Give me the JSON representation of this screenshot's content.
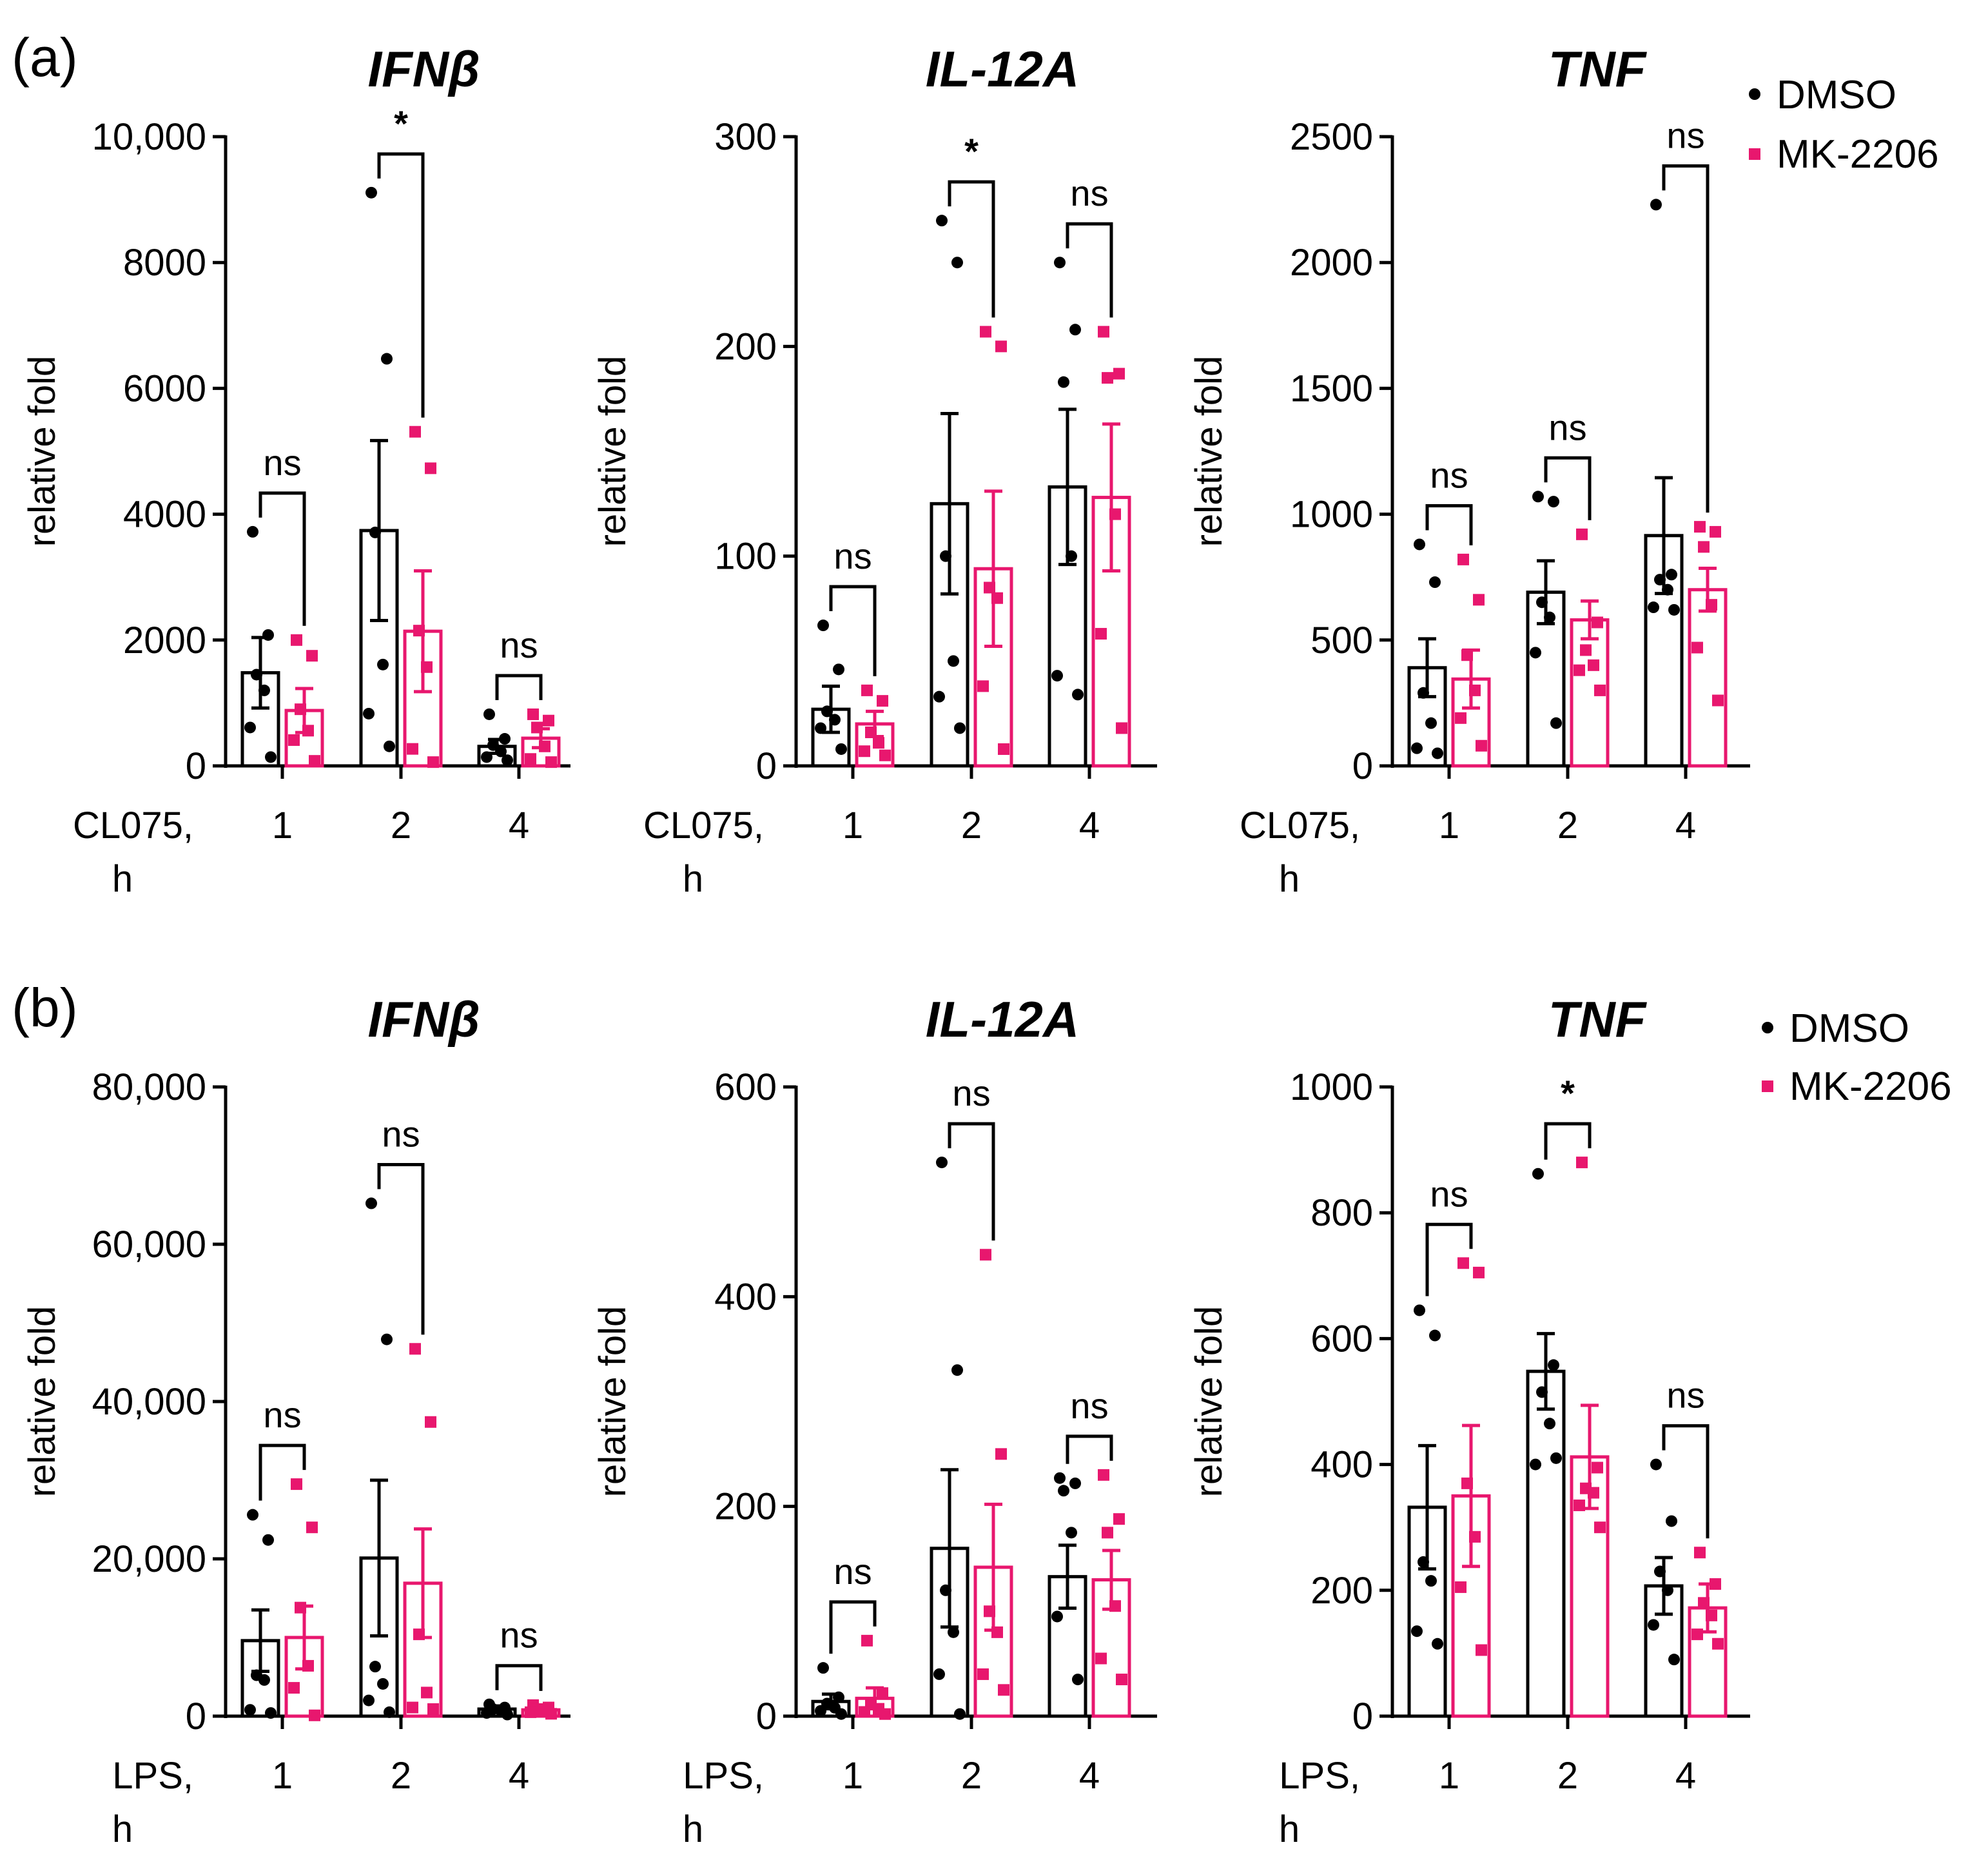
{
  "colors": {
    "dmso": "#000000",
    "mk": "#e8176e"
  },
  "legend": [
    {
      "label": "DMSO",
      "series": "dmso"
    },
    {
      "label": "MK-2206",
      "series": "mk"
    }
  ],
  "panels": [
    {
      "id": "a",
      "label": "(a)",
      "stimulus": "CL075,"
    },
    {
      "id": "b",
      "label": "(b)",
      "stimulus": "LPS,"
    }
  ],
  "chart_data": [
    {
      "panel": "a",
      "type": "bar",
      "title": "IFNβ",
      "ylabel": "relative fold",
      "xlabel_line1": "CL075,",
      "xlabel_line2": "h",
      "categories": [
        "1",
        "2",
        "4"
      ],
      "ylim": [
        0,
        10000
      ],
      "yticks": [
        0,
        2000,
        4000,
        6000,
        8000,
        10000
      ],
      "ytick_labels": [
        "0",
        "2000",
        "4000",
        "6000",
        "8000",
        "10,000"
      ],
      "series": [
        {
          "name": "DMSO",
          "means": [
            1480,
            3740,
            310
          ],
          "sem": [
            560,
            1430,
            110
          ],
          "points": [
            [
              3720,
              2080,
              1450,
              1200,
              610,
              140
            ],
            [
              9110,
              6470,
              3710,
              1610,
              830,
              310
            ],
            [
              820,
              430,
              330,
              230,
              140,
              90
            ]
          ]
        },
        {
          "name": "MK-2206",
          "means": [
            880,
            2140,
            440
          ],
          "sem": [
            350,
            960,
            150
          ],
          "points": [
            [
              2000,
              1750,
              900,
              560,
              410,
              80
            ],
            [
              5310,
              4730,
              2150,
              1570,
              270,
              60
            ],
            [
              820,
              720,
              610,
              310,
              110,
              60
            ]
          ]
        }
      ],
      "significance": [
        "ns",
        "*",
        "ns"
      ]
    },
    {
      "panel": "a",
      "type": "bar",
      "title": "IL-12A",
      "ylabel": "relative fold",
      "xlabel_line1": "CL075,",
      "xlabel_line2": "h",
      "categories": [
        "1",
        "2",
        "4"
      ],
      "ylim": [
        0,
        300
      ],
      "yticks": [
        0,
        100,
        200,
        300
      ],
      "ytick_labels": [
        "0",
        "100",
        "200",
        "300"
      ],
      "series": [
        {
          "name": "DMSO",
          "means": [
            27,
            125,
            133
          ],
          "sem": [
            11,
            43,
            37
          ],
          "points": [
            [
              67,
              46,
              26,
              22,
              18,
              8
            ],
            [
              260,
              240,
              100,
              50,
              33,
              18
            ],
            [
              240,
              208,
              183,
              100,
              43,
              34
            ]
          ]
        },
        {
          "name": "MK-2206",
          "means": [
            20,
            94,
            128
          ],
          "sem": [
            6,
            37,
            35
          ],
          "points": [
            [
              36,
              31,
              16,
              11,
              7,
              5
            ],
            [
              207,
              200,
              85,
              80,
              38,
              8
            ],
            [
              207,
              187,
              185,
              120,
              63,
              18
            ]
          ]
        }
      ],
      "significance": [
        "ns",
        "*",
        "ns"
      ]
    },
    {
      "panel": "a",
      "type": "bar",
      "title": "TNF",
      "ylabel": "relative fold",
      "xlabel_line1": "CL075,",
      "xlabel_line2": "h",
      "categories": [
        "1",
        "2",
        "4"
      ],
      "ylim": [
        0,
        2500
      ],
      "yticks": [
        0,
        500,
        1000,
        1500,
        2000,
        2500
      ],
      "ytick_labels": [
        "0",
        "500",
        "1000",
        "1500",
        "2000",
        "2500"
      ],
      "series": [
        {
          "name": "DMSO",
          "means": [
            390,
            690,
            915
          ],
          "sem": [
            115,
            125,
            230
          ],
          "points": [
            [
              880,
              730,
              290,
              170,
              70,
              50
            ],
            [
              1070,
              1050,
              650,
              590,
              450,
              170
            ],
            [
              2230,
              760,
              740,
              700,
              630,
              620
            ]
          ]
        },
        {
          "name": "MK-2206",
          "means": [
            345,
            580,
            700
          ],
          "sem": [
            115,
            75,
            85
          ],
          "points": [
            [
              820,
              660,
              440,
              300,
              190,
              80
            ],
            [
              920,
              570,
              460,
              400,
              380,
              300
            ],
            [
              950,
              930,
              870,
              640,
              470,
              260
            ]
          ]
        }
      ],
      "significance": [
        "ns",
        "ns",
        "ns"
      ]
    },
    {
      "panel": "b",
      "type": "bar",
      "title": "IFNβ",
      "ylabel": "relative fold",
      "xlabel_line1": "LPS,",
      "xlabel_line2": "h",
      "categories": [
        "1",
        "2",
        "4"
      ],
      "ylim": [
        0,
        80000
      ],
      "yticks": [
        0,
        20000,
        40000,
        60000,
        80000
      ],
      "ytick_labels": [
        "0",
        "20,000",
        "40,000",
        "60,000",
        "80,000"
      ],
      "series": [
        {
          "name": "DMSO",
          "means": [
            9600,
            20100,
            900
          ],
          "sem": [
            3900,
            9900,
            400
          ],
          "points": [
            [
              25600,
              22400,
              5200,
              4600,
              800,
              400
            ],
            [
              65200,
              47900,
              6300,
              4100,
              2000,
              500
            ],
            [
              1500,
              1100,
              900,
              700,
              400,
              200
            ]
          ]
        },
        {
          "name": "MK-2206",
          "means": [
            10000,
            16900,
            800
          ],
          "sem": [
            4000,
            6900,
            300
          ],
          "points": [
            [
              29500,
              24000,
              13800,
              6400,
              3600,
              100
            ],
            [
              46700,
              37400,
              10400,
              3000,
              1100,
              900
            ],
            [
              1400,
              1100,
              900,
              700,
              500,
              300
            ]
          ]
        }
      ],
      "significance": [
        "ns",
        "ns",
        "ns"
      ]
    },
    {
      "panel": "b",
      "type": "bar",
      "title": "IL-12A",
      "ylabel": "relative fold",
      "xlabel_line1": "LPS,",
      "xlabel_line2": "h",
      "categories": [
        "1",
        "2",
        "4"
      ],
      "ylim": [
        0,
        600
      ],
      "yticks": [
        0,
        200,
        400,
        600
      ],
      "ytick_labels": [
        "0",
        "200",
        "400",
        "600"
      ],
      "series": [
        {
          "name": "DMSO",
          "means": [
            14,
            160,
            133
          ],
          "sem": [
            7,
            75,
            30
          ],
          "points": [
            [
              46,
              18,
              12,
              8,
              5,
              2
            ],
            [
              528,
              330,
              120,
              80,
              40,
              2
            ],
            [
              227,
              222,
              215,
              175,
              95,
              35
            ]
          ]
        },
        {
          "name": "MK-2206",
          "means": [
            17,
            142,
            130
          ],
          "sem": [
            10,
            60,
            28
          ],
          "points": [
            [
              72,
              22,
              12,
              7,
              4,
              2
            ],
            [
              440,
              250,
              100,
              80,
              40,
              25
            ],
            [
              230,
              188,
              175,
              105,
              55,
              35
            ]
          ]
        }
      ],
      "significance": [
        "ns",
        "ns",
        "ns"
      ]
    },
    {
      "panel": "b",
      "type": "bar",
      "title": "TNF",
      "ylabel": "relative fold",
      "xlabel_line1": "LPS,",
      "xlabel_line2": "h",
      "categories": [
        "1",
        "2",
        "4"
      ],
      "ylim": [
        0,
        1000
      ],
      "yticks": [
        0,
        200,
        400,
        600,
        800,
        1000
      ],
      "ytick_labels": [
        "0",
        "200",
        "400",
        "600",
        "800",
        "1000"
      ],
      "series": [
        {
          "name": "DMSO",
          "means": [
            332,
            548,
            207
          ],
          "sem": [
            98,
            60,
            45
          ],
          "points": [
            [
              645,
              605,
              245,
              215,
              135,
              115
            ],
            [
              862,
              558,
              515,
              465,
              400,
              410
            ],
            [
              400,
              310,
              230,
              200,
              145,
              90
            ]
          ]
        },
        {
          "name": "MK-2206",
          "means": [
            350,
            412,
            172
          ],
          "sem": [
            112,
            82,
            38
          ],
          "points": [
            [
              720,
              705,
              370,
              285,
              205,
              105
            ],
            [
              880,
              395,
              362,
              355,
              335,
              300
            ],
            [
              260,
              210,
              180,
              160,
              130,
              115
            ]
          ]
        }
      ],
      "significance": [
        "ns",
        "*",
        "ns"
      ]
    }
  ]
}
